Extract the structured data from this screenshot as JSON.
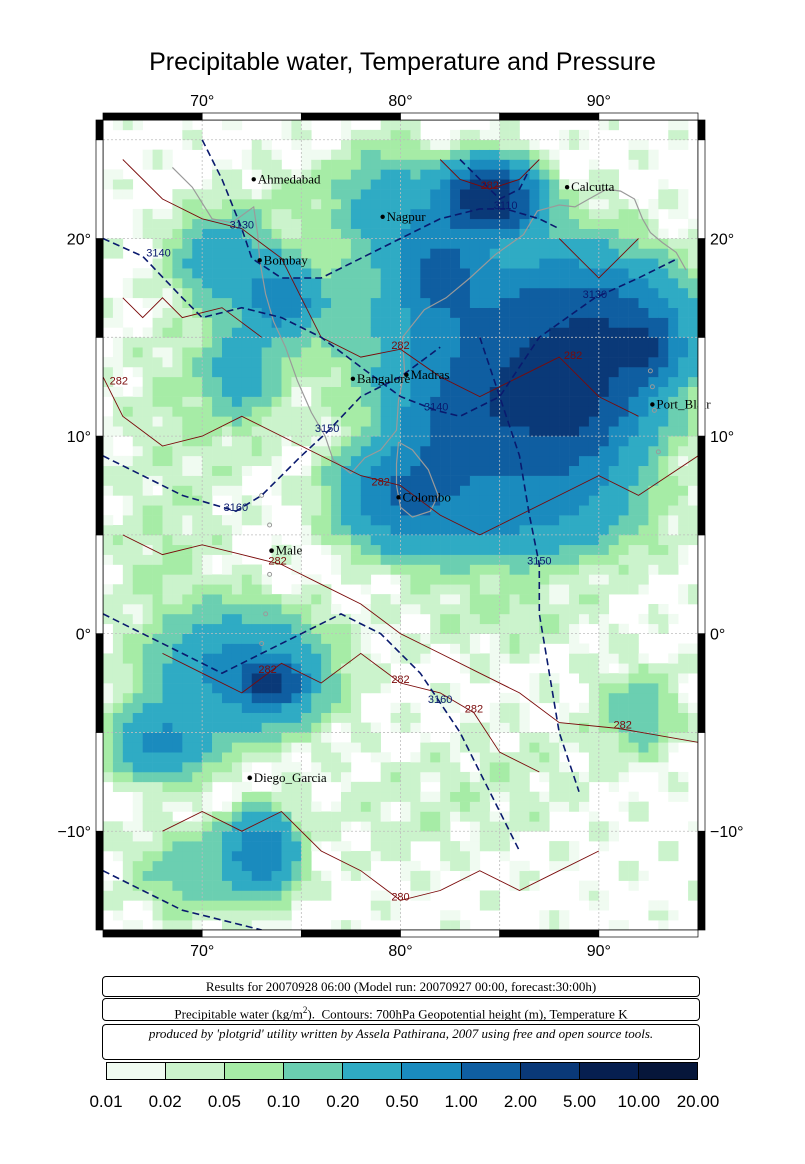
{
  "title": "Precipitable water, Temperature and Pressure",
  "map": {
    "lon_range": [
      65,
      95
    ],
    "lat_range": [
      -15,
      26
    ],
    "lon_ticks": [
      {
        "value": 70,
        "label": "70°"
      },
      {
        "value": 80,
        "label": "80°"
      },
      {
        "value": 90,
        "label": "90°"
      }
    ],
    "lat_ticks": [
      {
        "value": 20,
        "label": "20°"
      },
      {
        "value": 10,
        "label": "10°"
      },
      {
        "value": 0,
        "label": "0°"
      },
      {
        "value": -10,
        "label": "−10°"
      }
    ],
    "cities": [
      {
        "name": "Ahmedabad",
        "lon": 72.6,
        "lat": 23.0
      },
      {
        "name": "Nagpur",
        "lon": 79.1,
        "lat": 21.1
      },
      {
        "name": "Calcutta",
        "lon": 88.4,
        "lat": 22.6
      },
      {
        "name": "Bombay",
        "lon": 72.9,
        "lat": 18.9
      },
      {
        "name": "Bangalore",
        "lon": 77.6,
        "lat": 12.9
      },
      {
        "name": "Madras",
        "lon": 80.3,
        "lat": 13.1
      },
      {
        "name": "Port_Blair",
        "lon": 92.7,
        "lat": 11.6
      },
      {
        "name": "Colombo",
        "lon": 79.9,
        "lat": 6.9
      },
      {
        "name": "Male",
        "lon": 73.5,
        "lat": 4.2
      },
      {
        "name": "Diego_Garcia",
        "lon": 72.4,
        "lat": -7.3
      }
    ],
    "pressure_contour_labels": [
      {
        "text": "3130",
        "lon": 72.0,
        "lat": 20.5
      },
      {
        "text": "3140",
        "lon": 67.8,
        "lat": 19.1
      },
      {
        "text": "3130",
        "lon": 89.8,
        "lat": 17.0
      },
      {
        "text": "3140",
        "lon": 81.8,
        "lat": 11.3
      },
      {
        "text": "3150",
        "lon": 76.3,
        "lat": 10.2
      },
      {
        "text": "3160",
        "lon": 71.7,
        "lat": 6.2
      },
      {
        "text": "3150",
        "lon": 87.0,
        "lat": 3.5
      },
      {
        "text": "3160",
        "lon": 82.0,
        "lat": -3.5
      },
      {
        "text": "3110",
        "lon": 85.3,
        "lat": 21.5
      }
    ],
    "temperature_contour_labels": [
      {
        "text": "282",
        "lon": 84.5,
        "lat": 22.5
      },
      {
        "text": "282",
        "lon": 80.0,
        "lat": 14.4
      },
      {
        "text": "282",
        "lon": 88.7,
        "lat": 13.9
      },
      {
        "text": "282",
        "lon": 65.8,
        "lat": 12.6
      },
      {
        "text": "282",
        "lon": 79.0,
        "lat": 7.5
      },
      {
        "text": "282",
        "lon": 73.8,
        "lat": 3.5
      },
      {
        "text": "282",
        "lon": 73.3,
        "lat": -2.0
      },
      {
        "text": "282",
        "lon": 80.0,
        "lat": -2.5
      },
      {
        "text": "282",
        "lon": 83.7,
        "lat": -4.0
      },
      {
        "text": "282",
        "lon": 91.2,
        "lat": -4.8
      },
      {
        "text": "280",
        "lon": 80.0,
        "lat": -13.5
      }
    ]
  },
  "info": {
    "run_line": "Results for 20070928 06:00 (Model run: 20070927 00:00, forecast:30:00h)",
    "legend_line": "Precipitable water (kg/m²).  Contours: 700hPa Geopotential height (m), Temperature K",
    "credit_line": "produced by 'plotgrid' utility written by Assela Pathirana, 2007 using free and open source tools."
  },
  "colorbar": {
    "colors": [
      "#f0fbf1",
      "#cbf3cc",
      "#a6eca6",
      "#6bcfb1",
      "#2fabc4",
      "#1a8bbe",
      "#0f5ea1",
      "#0a3978",
      "#061f50",
      "#06163a",
      "#030c20"
    ],
    "labels": [
      "0.01",
      "0.02",
      "0.05",
      "0.10",
      "0.20",
      "0.50",
      "1.00",
      "2.00",
      "5.00",
      "10.00",
      "20.00"
    ]
  }
}
